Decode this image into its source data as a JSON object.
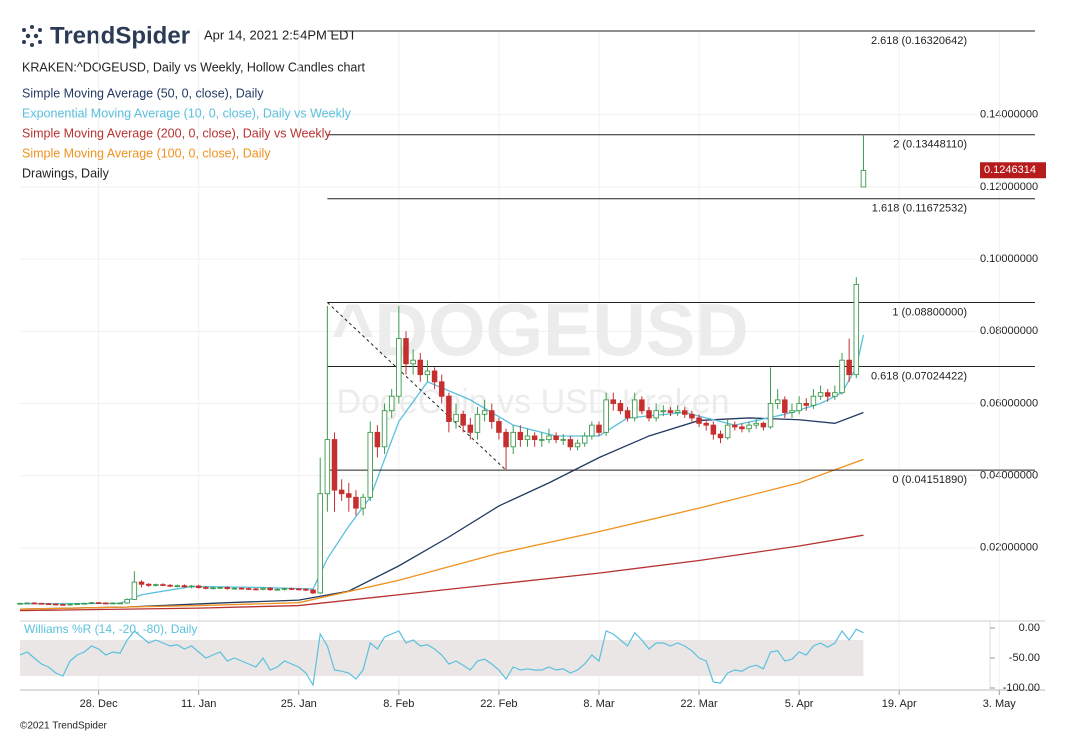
{
  "header": {
    "logo": "TrendSpider",
    "timestamp": "Apr 14, 2021 2:54PM EDT",
    "footer": "©2021 TrendSpider"
  },
  "chart_data": {
    "type": "candlestick",
    "title": "KRAKEN:^DOGEUSD, Daily vs Weekly, Hollow Candles chart",
    "watermark": "^DOGEUSD",
    "watermark_subtitle": "DogeCoin vs USD Kraken",
    "x": [
      "Dec 17",
      "Dec 18",
      "Dec 19",
      "Dec 20",
      "Dec 21",
      "Dec 22",
      "Dec 23",
      "Dec 24",
      "Dec 25",
      "Dec 26",
      "Dec 27",
      "Dec 28",
      "Dec 29",
      "Dec 30",
      "Dec 31",
      "Jan 1",
      "Jan 2",
      "Jan 3",
      "Jan 4",
      "Jan 5",
      "Jan 6",
      "Jan 7",
      "Jan 8",
      "Jan 9",
      "Jan 10",
      "Jan 11",
      "Jan 12",
      "Jan 13",
      "Jan 14",
      "Jan 15",
      "Jan 16",
      "Jan 17",
      "Jan 18",
      "Jan 19",
      "Jan 20",
      "Jan 21",
      "Jan 22",
      "Jan 23",
      "Jan 24",
      "Jan 25",
      "Jan 26",
      "Jan 27",
      "Jan 28",
      "Jan 29",
      "Jan 30",
      "Jan 31",
      "Feb 1",
      "Feb 2",
      "Feb 3",
      "Feb 4",
      "Feb 5",
      "Feb 6",
      "Feb 7",
      "Feb 8",
      "Feb 9",
      "Feb 10",
      "Feb 11",
      "Feb 12",
      "Feb 13",
      "Feb 14",
      "Feb 15",
      "Feb 16",
      "Feb 17",
      "Feb 18",
      "Feb 19",
      "Feb 20",
      "Feb 21",
      "Feb 22",
      "Feb 23",
      "Feb 24",
      "Feb 25",
      "Feb 26",
      "Feb 27",
      "Feb 28",
      "Mar 1",
      "Mar 2",
      "Mar 3",
      "Mar 4",
      "Mar 5",
      "Mar 6",
      "Mar 7",
      "Mar 8",
      "Mar 9",
      "Mar 10",
      "Mar 11",
      "Mar 12",
      "Mar 13",
      "Mar 14",
      "Mar 15",
      "Mar 16",
      "Mar 17",
      "Mar 18",
      "Mar 19",
      "Mar 20",
      "Mar 21",
      "Mar 22",
      "Mar 23",
      "Mar 24",
      "Mar 25",
      "Mar 26",
      "Mar 27",
      "Mar 28",
      "Mar 29",
      "Mar 30",
      "Mar 31",
      "Apr 1",
      "Apr 2",
      "Apr 3",
      "Apr 4",
      "Apr 5",
      "Apr 6",
      "Apr 7",
      "Apr 8",
      "Apr 9",
      "Apr 10",
      "Apr 11",
      "Apr 12",
      "Apr 13",
      "Apr 14"
    ],
    "open": [
      0.0045,
      0.0046,
      0.0047,
      0.0046,
      0.0045,
      0.0044,
      0.0043,
      0.0042,
      0.0044,
      0.0045,
      0.0046,
      0.0048,
      0.0047,
      0.0046,
      0.0047,
      0.0047,
      0.0057,
      0.0105,
      0.0099,
      0.0096,
      0.0098,
      0.0096,
      0.0094,
      0.0095,
      0.0092,
      0.0094,
      0.009,
      0.0088,
      0.0089,
      0.009,
      0.0087,
      0.0088,
      0.0087,
      0.0086,
      0.0085,
      0.0088,
      0.0084,
      0.0085,
      0.0087,
      0.0086,
      0.0085,
      0.0083,
      0.0075,
      0.035,
      0.05,
      0.036,
      0.035,
      0.034,
      0.031,
      0.034,
      0.052,
      0.048,
      0.058,
      0.062,
      0.078,
      0.071,
      0.072,
      0.068,
      0.069,
      0.066,
      0.062,
      0.055,
      0.057,
      0.054,
      0.052,
      0.057,
      0.058,
      0.055,
      0.052,
      0.048,
      0.052,
      0.05,
      0.051,
      0.05,
      0.05,
      0.051,
      0.05,
      0.05,
      0.048,
      0.049,
      0.051,
      0.054,
      0.052,
      0.061,
      0.06,
      0.058,
      0.056,
      0.061,
      0.058,
      0.056,
      0.058,
      0.058,
      0.0575,
      0.058,
      0.057,
      0.056,
      0.0545,
      0.054,
      0.0515,
      0.0505,
      0.054,
      0.0535,
      0.053,
      0.054,
      0.0545,
      0.0535,
      0.06,
      0.061,
      0.0575,
      0.058,
      0.06,
      0.0595,
      0.062,
      0.063,
      0.062,
      0.063,
      0.072,
      0.068,
      0.12
    ],
    "high": [
      0.0048,
      0.0049,
      0.0049,
      0.0048,
      0.0047,
      0.0046,
      0.0045,
      0.0046,
      0.0047,
      0.0048,
      0.005,
      0.005,
      0.0049,
      0.0049,
      0.0049,
      0.006,
      0.0135,
      0.011,
      0.0102,
      0.0101,
      0.0102,
      0.01,
      0.0098,
      0.0099,
      0.0097,
      0.0098,
      0.0094,
      0.0092,
      0.0093,
      0.0093,
      0.0091,
      0.0091,
      0.009,
      0.0089,
      0.0091,
      0.0091,
      0.0088,
      0.009,
      0.009,
      0.0089,
      0.0088,
      0.0086,
      0.045,
      0.087,
      0.052,
      0.039,
      0.038,
      0.036,
      0.035,
      0.055,
      0.054,
      0.06,
      0.064,
      0.087,
      0.08,
      0.075,
      0.074,
      0.072,
      0.07,
      0.068,
      0.063,
      0.06,
      0.058,
      0.056,
      0.059,
      0.061,
      0.06,
      0.056,
      0.053,
      0.054,
      0.054,
      0.053,
      0.052,
      0.052,
      0.053,
      0.052,
      0.0515,
      0.051,
      0.05,
      0.052,
      0.055,
      0.055,
      0.063,
      0.063,
      0.061,
      0.059,
      0.063,
      0.062,
      0.059,
      0.06,
      0.0595,
      0.059,
      0.0595,
      0.059,
      0.058,
      0.057,
      0.0555,
      0.055,
      0.0525,
      0.0555,
      0.055,
      0.0545,
      0.055,
      0.056,
      0.055,
      0.07,
      0.064,
      0.062,
      0.06,
      0.062,
      0.0615,
      0.064,
      0.065,
      0.064,
      0.065,
      0.074,
      0.078,
      0.095,
      0.1345
    ],
    "low": [
      0.0043,
      0.0044,
      0.0044,
      0.0043,
      0.0042,
      0.0041,
      0.004,
      0.004,
      0.0042,
      0.0043,
      0.0044,
      0.0045,
      0.0044,
      0.0044,
      0.0045,
      0.0045,
      0.0056,
      0.009,
      0.0092,
      0.0093,
      0.0094,
      0.0091,
      0.009,
      0.0089,
      0.0088,
      0.0087,
      0.0085,
      0.0085,
      0.0086,
      0.0084,
      0.0084,
      0.0084,
      0.0083,
      0.0082,
      0.0082,
      0.0081,
      0.0081,
      0.0082,
      0.0083,
      0.0082,
      0.008,
      0.0072,
      0.0072,
      0.03,
      0.03,
      0.033,
      0.03,
      0.029,
      0.029,
      0.033,
      0.045,
      0.046,
      0.056,
      0.06,
      0.068,
      0.068,
      0.066,
      0.066,
      0.064,
      0.06,
      0.052,
      0.053,
      0.052,
      0.05,
      0.05,
      0.055,
      0.053,
      0.05,
      0.0415,
      0.046,
      0.048,
      0.048,
      0.048,
      0.048,
      0.049,
      0.049,
      0.0485,
      0.047,
      0.047,
      0.048,
      0.05,
      0.051,
      0.051,
      0.058,
      0.057,
      0.055,
      0.055,
      0.057,
      0.055,
      0.055,
      0.0565,
      0.0565,
      0.0565,
      0.056,
      0.055,
      0.0535,
      0.0525,
      0.05,
      0.049,
      0.05,
      0.0525,
      0.052,
      0.052,
      0.053,
      0.0525,
      0.053,
      0.0585,
      0.056,
      0.056,
      0.057,
      0.058,
      0.0585,
      0.061,
      0.0605,
      0.061,
      0.0625,
      0.066,
      0.067,
      0.12
    ],
    "close": [
      0.0046,
      0.0047,
      0.0046,
      0.0045,
      0.0044,
      0.0043,
      0.0042,
      0.0044,
      0.0045,
      0.0046,
      0.0048,
      0.0047,
      0.0046,
      0.0047,
      0.0047,
      0.0057,
      0.0105,
      0.0099,
      0.0096,
      0.0098,
      0.0096,
      0.0094,
      0.0095,
      0.0092,
      0.0094,
      0.009,
      0.0088,
      0.0089,
      0.009,
      0.0087,
      0.0088,
      0.0087,
      0.0086,
      0.0085,
      0.0088,
      0.0084,
      0.0085,
      0.0087,
      0.0086,
      0.0085,
      0.0083,
      0.0075,
      0.035,
      0.05,
      0.036,
      0.035,
      0.034,
      0.031,
      0.034,
      0.052,
      0.048,
      0.058,
      0.062,
      0.078,
      0.071,
      0.072,
      0.068,
      0.069,
      0.066,
      0.062,
      0.055,
      0.057,
      0.054,
      0.052,
      0.057,
      0.058,
      0.055,
      0.052,
      0.048,
      0.052,
      0.05,
      0.051,
      0.05,
      0.05,
      0.051,
      0.05,
      0.05,
      0.048,
      0.049,
      0.051,
      0.054,
      0.052,
      0.061,
      0.06,
      0.058,
      0.056,
      0.061,
      0.058,
      0.056,
      0.058,
      0.058,
      0.0575,
      0.058,
      0.057,
      0.056,
      0.0545,
      0.054,
      0.0515,
      0.0505,
      0.054,
      0.0535,
      0.053,
      0.054,
      0.0545,
      0.0535,
      0.06,
      0.061,
      0.0575,
      0.058,
      0.06,
      0.0595,
      0.062,
      0.063,
      0.062,
      0.063,
      0.072,
      0.068,
      0.093,
      0.1246
    ],
    "up_color": "#3d9b4c",
    "down_color": "#c62f2f",
    "series": [
      {
        "name": "Simple Moving Average (50, 0, close), Daily",
        "color": "#243a63",
        "x": [
          "Dec 17",
          "Jan 1",
          "Jan 15",
          "Jan 25",
          "Feb 1",
          "Feb 8",
          "Feb 15",
          "Feb 22",
          "Mar 1",
          "Mar 8",
          "Mar 15",
          "Mar 22",
          "Mar 29",
          "Apr 5",
          "Apr 10",
          "Apr 14"
        ],
        "values": [
          0.003,
          0.0036,
          0.0048,
          0.0055,
          0.008,
          0.015,
          0.023,
          0.0316,
          0.038,
          0.045,
          0.051,
          0.0553,
          0.056,
          0.0555,
          0.0545,
          0.0575
        ]
      },
      {
        "name": "Exponential Moving Average (10, 0, close), Daily vs Weekly",
        "color": "#5bc0de",
        "x": [
          "Dec 17",
          "Dec 31",
          "Jan 3",
          "Jan 10",
          "Jan 20",
          "Jan 27",
          "Jan 29",
          "Feb 1",
          "Feb 4",
          "Feb 8",
          "Feb 12",
          "Feb 18",
          "Feb 24",
          "Mar 2",
          "Mar 8",
          "Mar 12",
          "Mar 20",
          "Mar 27",
          "Apr 3",
          "Apr 8",
          "Apr 11",
          "Apr 13",
          "Apr 14"
        ],
        "values": [
          0.0045,
          0.0046,
          0.007,
          0.0093,
          0.009,
          0.0086,
          0.017,
          0.026,
          0.034,
          0.055,
          0.066,
          0.061,
          0.054,
          0.051,
          0.051,
          0.056,
          0.0575,
          0.054,
          0.057,
          0.06,
          0.063,
          0.07,
          0.079
        ]
      },
      {
        "name": "Simple Moving Average (200, 0, close), Daily vs Weekly",
        "color": "#b83232",
        "x": [
          "Dec 17",
          "Jan 11",
          "Jan 25",
          "Feb 8",
          "Feb 22",
          "Mar 8",
          "Mar 22",
          "Apr 5",
          "Apr 14"
        ],
        "values": [
          0.0026,
          0.0033,
          0.004,
          0.007,
          0.01,
          0.013,
          0.0165,
          0.0205,
          0.0235
        ]
      },
      {
        "name": "Simple Moving Average (100, 0, close), Daily",
        "color": "#f0921e",
        "x": [
          "Dec 17",
          "Jan 11",
          "Jan 25",
          "Feb 8",
          "Feb 22",
          "Mar 8",
          "Mar 22",
          "Apr 5",
          "Apr 14"
        ],
        "values": [
          0.003,
          0.004,
          0.0048,
          0.011,
          0.0185,
          0.0245,
          0.031,
          0.038,
          0.0445
        ]
      }
    ],
    "drawings": {
      "name": "Drawings, Daily",
      "color": "#222222",
      "fibonacci": [
        {
          "label": "2.618 (0.16320642)",
          "value": 0.16320642
        },
        {
          "label": "2 (0.13448110)",
          "value": 0.1344811
        },
        {
          "label": "1.618 (0.11672532)",
          "value": 0.11672532
        },
        {
          "label": "1 (0.08800000)",
          "value": 0.088
        },
        {
          "label": "0.618 (0.07024422)",
          "value": 0.07024422
        },
        {
          "label": "0 (0.04151890)",
          "value": 0.0415189
        }
      ],
      "anchor": {
        "x": [
          "Jan 29",
          "Feb 23"
        ],
        "values": [
          0.088,
          0.0415189
        ]
      }
    },
    "last_price": 0.1246314,
    "last_price_color": "#b71c1c",
    "xlim": [
      "Dec 17",
      "May 8"
    ],
    "xticks": [
      {
        "value": "Dec 28",
        "label": "28. Dec"
      },
      {
        "value": "Jan 11",
        "label": "11. Jan"
      },
      {
        "value": "Jan 25",
        "label": "25. Jan"
      },
      {
        "value": "Feb 8",
        "label": "8. Feb"
      },
      {
        "value": "Feb 22",
        "label": "22. Feb"
      },
      {
        "value": "Mar 8",
        "label": "8. Mar"
      },
      {
        "value": "Mar 22",
        "label": "22. Mar"
      },
      {
        "value": "Apr 5",
        "label": "5. Apr"
      },
      {
        "value": "Apr 19",
        "label": "19. Apr"
      },
      {
        "value": "May 3",
        "label": "3. May"
      }
    ],
    "ylim": [
      0,
      0.1635
    ],
    "yticks": [
      {
        "value": 0.02,
        "label": "0.02000000"
      },
      {
        "value": 0.04,
        "label": "0.04000000"
      },
      {
        "value": 0.06,
        "label": "0.06000000"
      },
      {
        "value": 0.08,
        "label": "0.08000000"
      },
      {
        "value": 0.1,
        "label": "0.10000000"
      },
      {
        "value": 0.12,
        "label": "0.12000000"
      },
      {
        "value": 0.14,
        "label": "0.14000000"
      }
    ],
    "grid": true,
    "indicator": {
      "name": "Williams %R (14, -20, -80), Daily",
      "color": "#5bc0de",
      "band_color": "#ebe6e6",
      "band": [
        -80,
        -20
      ],
      "ylim": [
        -100,
        0
      ],
      "yticks": [
        {
          "value": 0,
          "label": "0.00"
        },
        {
          "value": -50,
          "label": "-50.00"
        },
        {
          "value": -100,
          "label": "-100.00"
        }
      ],
      "values": [
        -45,
        -40,
        -50,
        -60,
        -65,
        -75,
        -80,
        -55,
        -45,
        -40,
        -30,
        -35,
        -45,
        -40,
        -42,
        -20,
        -5,
        -15,
        -25,
        -20,
        -25,
        -30,
        -28,
        -35,
        -30,
        -40,
        -50,
        -45,
        -40,
        -55,
        -50,
        -55,
        -60,
        -65,
        -50,
        -70,
        -65,
        -55,
        -60,
        -65,
        -75,
        -95,
        -10,
        -30,
        -70,
        -72,
        -75,
        -85,
        -70,
        -25,
        -35,
        -15,
        -10,
        -5,
        -25,
        -20,
        -30,
        -28,
        -35,
        -45,
        -60,
        -55,
        -62,
        -70,
        -55,
        -52,
        -60,
        -70,
        -85,
        -65,
        -70,
        -68,
        -70,
        -70,
        -65,
        -70,
        -68,
        -75,
        -70,
        -60,
        -45,
        -55,
        -5,
        -10,
        -20,
        -30,
        -8,
        -20,
        -35,
        -25,
        -25,
        -30,
        -25,
        -30,
        -38,
        -50,
        -55,
        -90,
        -92,
        -75,
        -70,
        -72,
        -65,
        -62,
        -68,
        -40,
        -38,
        -55,
        -52,
        -40,
        -45,
        -30,
        -25,
        -32,
        -25,
        -5,
        -20,
        -2,
        -8
      ]
    }
  }
}
